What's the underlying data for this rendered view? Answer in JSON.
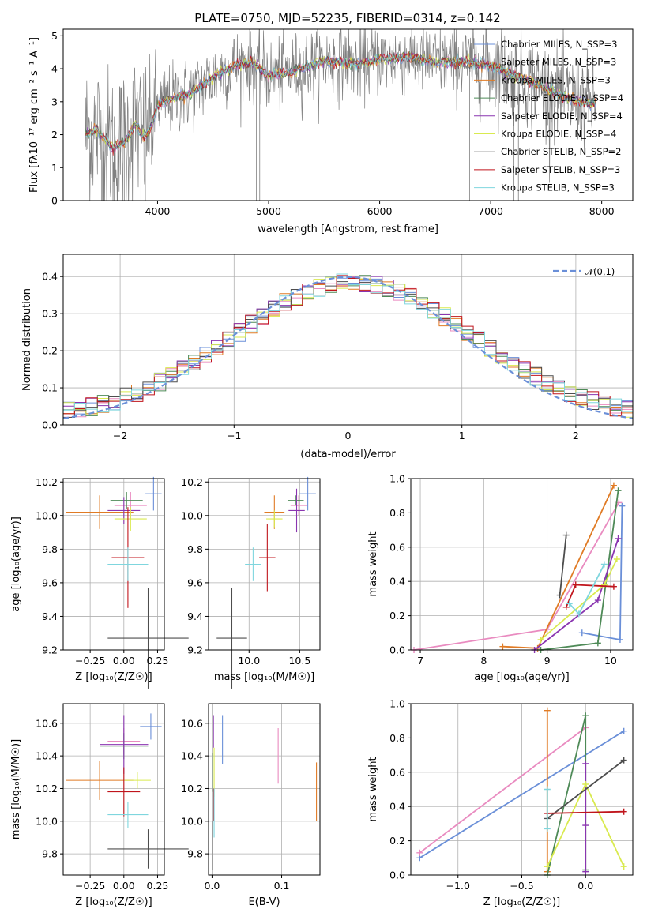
{
  "colors": {
    "chabrier_miles": "#6a8fd8",
    "salpeter_miles": "#e98bc0",
    "kroupa_miles": "#e07b25",
    "chabrier_elodie": "#4e8a57",
    "salpeter_elodie": "#8a35b0",
    "kroupa_elodie": "#d9ea4f",
    "chabrier_stelib": "#4d4d4d",
    "salpeter_stelib": "#c0151c",
    "kroupa_stelib": "#7fd6de",
    "data": "#808080",
    "normal": "#6a8fd8"
  },
  "chart_data": [
    {
      "id": "spectrum",
      "type": "line",
      "title": "PLATE=0750, MJD=52235, FIBERID=0314, z=0.142",
      "xlabel": "wavelength [Angstrom, rest frame]",
      "ylabel": "Flux [f_λ 10^-17 erg cm^-2 s^-1 A^-1]",
      "xlim": [
        3150,
        8280
      ],
      "ylim": [
        0,
        5.2
      ],
      "xticks": [
        4000,
        5000,
        6000,
        7000,
        8000
      ],
      "yticks": [
        0,
        1,
        2,
        3,
        4,
        5
      ],
      "legend_position": "top-right",
      "legend": [
        {
          "label": "Chabrier MILES, N_SSP=3",
          "color_key": "chabrier_miles"
        },
        {
          "label": "Salpeter MILES, N_SSP=3",
          "color_key": "salpeter_miles"
        },
        {
          "label": "Kroupa MILES, N_SSP=3",
          "color_key": "kroupa_miles"
        },
        {
          "label": "Chabrier ELODIE, N_SSP=4",
          "color_key": "chabrier_elodie"
        },
        {
          "label": "Salpeter ELODIE, N_SSP=4",
          "color_key": "salpeter_elodie"
        },
        {
          "label": "Kroupa ELODIE, N_SSP=4",
          "color_key": "kroupa_elodie"
        },
        {
          "label": "Chabrier STELIB, N_SSP=2",
          "color_key": "chabrier_stelib"
        },
        {
          "label": "Salpeter STELIB, N_SSP=3",
          "color_key": "salpeter_stelib"
        },
        {
          "label": "Kroupa STELIB, N_SSP=3",
          "color_key": "kroupa_stelib"
        }
      ],
      "model_continuum": [
        [
          3350,
          2.0
        ],
        [
          3450,
          2.15
        ],
        [
          3600,
          1.6
        ],
        [
          3700,
          1.75
        ],
        [
          3800,
          2.3
        ],
        [
          3880,
          1.9
        ],
        [
          3950,
          2.3
        ],
        [
          4000,
          2.9
        ],
        [
          4100,
          3.05
        ],
        [
          4300,
          3.25
        ],
        [
          4500,
          3.75
        ],
        [
          4700,
          4.1
        ],
        [
          4850,
          4.2
        ],
        [
          5000,
          3.8
        ],
        [
          5200,
          3.9
        ],
        [
          5500,
          4.25
        ],
        [
          5800,
          4.15
        ],
        [
          6000,
          4.3
        ],
        [
          6300,
          4.35
        ],
        [
          6500,
          4.2
        ],
        [
          6800,
          4.2
        ],
        [
          7000,
          4.1
        ],
        [
          7300,
          3.7
        ],
        [
          7500,
          3.4
        ],
        [
          7700,
          3.1
        ],
        [
          7900,
          2.95
        ]
      ]
    },
    {
      "id": "residuals",
      "type": "histogram",
      "xlabel": "(data-model)/error",
      "ylabel": "Normed distribution",
      "xlim": [
        -2.5,
        2.5
      ],
      "ylim": [
        0,
        0.46
      ],
      "xticks": [
        -2,
        -1,
        0,
        1,
        2
      ],
      "yticks": [
        0.0,
        0.1,
        0.2,
        0.3,
        0.4
      ],
      "legend_position": "top-right",
      "normal_label": "𝒩(0,1)"
    },
    {
      "id": "age-vs-Z",
      "type": "scatter",
      "xlabel": "Z [log10(Z/Z☉)]",
      "ylabel": "age [log10(age/yr)]",
      "xlim": [
        -0.45,
        0.3
      ],
      "ylim": [
        9.2,
        10.22
      ],
      "xticks": [
        -0.25,
        0.0,
        0.25
      ],
      "yticks": [
        9.2,
        9.4,
        9.6,
        9.8,
        10.0,
        10.2
      ],
      "points": [
        {
          "color_key": "chabrier_miles",
          "x": 0.22,
          "y": 10.13,
          "xerr": 0.06,
          "yerr": 0.1
        },
        {
          "color_key": "salpeter_miles",
          "x": 0.05,
          "y": 10.06,
          "xerr": 0.12,
          "yerr": 0.08
        },
        {
          "color_key": "kroupa_miles",
          "x": -0.18,
          "y": 10.02,
          "xerr": 0.25,
          "yerr": 0.1
        },
        {
          "color_key": "chabrier_elodie",
          "x": 0.02,
          "y": 10.09,
          "xerr": 0.12,
          "yerr": 0.05
        },
        {
          "color_key": "salpeter_elodie",
          "x": 0.0,
          "y": 10.03,
          "xerr": 0.12,
          "yerr": 0.08
        },
        {
          "color_key": "kroupa_elodie",
          "x": 0.05,
          "y": 9.98,
          "xerr": 0.12,
          "yerr": 0.07
        },
        {
          "color_key": "chabrier_stelib",
          "x": 0.18,
          "y": 9.27,
          "xerr": 0.3,
          "yerr": 0.3
        },
        {
          "color_key": "salpeter_stelib",
          "x": 0.03,
          "y": 9.75,
          "xerr": 0.12,
          "yerr": 0.3
        },
        {
          "color_key": "kroupa_stelib",
          "x": 0.03,
          "y": 9.71,
          "xerr": 0.15,
          "yerr": 0.1
        }
      ]
    },
    {
      "id": "age-vs-mass",
      "type": "scatter",
      "xlabel": "mass [log10(M/M☉)]",
      "xlim": [
        9.6,
        10.7
      ],
      "ylim": [
        9.2,
        10.22
      ],
      "xticks": [
        10.0,
        10.5
      ],
      "yticks": [
        9.2,
        9.4,
        9.6,
        9.8,
        10.0,
        10.2
      ],
      "points": [
        {
          "color_key": "chabrier_miles",
          "x": 10.58,
          "y": 10.13,
          "xerr": 0.08,
          "yerr": 0.1
        },
        {
          "color_key": "salpeter_miles",
          "x": 10.49,
          "y": 10.06,
          "xerr": 0.08,
          "yerr": 0.06
        },
        {
          "color_key": "kroupa_miles",
          "x": 10.25,
          "y": 10.02,
          "xerr": 0.1,
          "yerr": 0.1
        },
        {
          "color_key": "chabrier_elodie",
          "x": 10.46,
          "y": 10.09,
          "xerr": 0.08,
          "yerr": 0.03
        },
        {
          "color_key": "salpeter_elodie",
          "x": 10.47,
          "y": 10.03,
          "xerr": 0.08,
          "yerr": 0.13
        },
        {
          "color_key": "kroupa_elodie",
          "x": 10.25,
          "y": 9.98,
          "xerr": 0.08,
          "yerr": 0.05
        },
        {
          "color_key": "chabrier_stelib",
          "x": 9.83,
          "y": 9.27,
          "xerr": 0.15,
          "yerr": 0.3
        },
        {
          "color_key": "salpeter_stelib",
          "x": 10.18,
          "y": 9.75,
          "xerr": 0.08,
          "yerr": 0.2
        },
        {
          "color_key": "kroupa_stelib",
          "x": 10.04,
          "y": 9.71,
          "xerr": 0.08,
          "yerr": 0.1
        }
      ]
    },
    {
      "id": "weight-vs-age",
      "type": "line",
      "xlabel": "age [log10(age/yr)]",
      "ylabel": "mass weight",
      "xlim": [
        6.85,
        10.35
      ],
      "ylim": [
        0,
        1.0
      ],
      "xticks": [
        7,
        8,
        9,
        10
      ],
      "yticks": [
        0.0,
        0.2,
        0.4,
        0.6,
        0.8,
        1.0
      ],
      "series": [
        {
          "color_key": "chabrier_miles",
          "x": [
            9.55,
            10.15,
            10.18
          ],
          "y": [
            0.1,
            0.06,
            0.84
          ]
        },
        {
          "color_key": "salpeter_miles",
          "x": [
            6.9,
            9.0,
            10.13
          ],
          "y": [
            0.0,
            0.12,
            0.86
          ]
        },
        {
          "color_key": "kroupa_miles",
          "x": [
            8.3,
            8.85,
            10.05
          ],
          "y": [
            0.02,
            0.01,
            0.96
          ]
        },
        {
          "color_key": "chabrier_elodie",
          "x": [
            8.9,
            9.8,
            10.12
          ],
          "y": [
            0.0,
            0.04,
            0.93
          ]
        },
        {
          "color_key": "salpeter_elodie",
          "x": [
            8.8,
            9.8,
            10.12
          ],
          "y": [
            0.0,
            0.29,
            0.65
          ]
        },
        {
          "color_key": "kroupa_elodie",
          "x": [
            8.9,
            9.9,
            10.1
          ],
          "y": [
            0.06,
            0.38,
            0.53
          ]
        },
        {
          "color_key": "chabrier_stelib",
          "x": [
            9.2,
            9.3
          ],
          "y": [
            0.32,
            0.67
          ]
        },
        {
          "color_key": "salpeter_stelib",
          "x": [
            9.3,
            9.45,
            10.05
          ],
          "y": [
            0.25,
            0.38,
            0.37
          ]
        },
        {
          "color_key": "kroupa_stelib",
          "x": [
            9.35,
            9.5,
            9.9
          ],
          "y": [
            0.27,
            0.21,
            0.5
          ]
        }
      ]
    },
    {
      "id": "mass-vs-Z",
      "type": "scatter",
      "xlabel": "Z [log10(Z/Z☉)]",
      "ylabel": "mass [log10(M/M☉)]",
      "xlim": [
        -0.45,
        0.3
      ],
      "ylim": [
        9.67,
        10.72
      ],
      "xticks": [
        -0.25,
        0.0,
        0.25
      ],
      "yticks": [
        9.8,
        10.0,
        10.2,
        10.4,
        10.6
      ],
      "points": [
        {
          "color_key": "chabrier_miles",
          "x": 0.2,
          "y": 10.58,
          "xerr": 0.08,
          "yerr": 0.08
        },
        {
          "color_key": "salpeter_miles",
          "x": 0.0,
          "y": 10.49,
          "xerr": 0.12,
          "yerr": 0.08
        },
        {
          "color_key": "kroupa_miles",
          "x": -0.18,
          "y": 10.25,
          "xerr": 0.25,
          "yerr": 0.12
        },
        {
          "color_key": "chabrier_elodie",
          "x": 0.0,
          "y": 10.46,
          "xerr": 0.18,
          "yerr": 0.08
        },
        {
          "color_key": "salpeter_elodie",
          "x": 0.0,
          "y": 10.47,
          "xerr": 0.18,
          "yerr": 0.18
        },
        {
          "color_key": "kroupa_elodie",
          "x": 0.1,
          "y": 10.25,
          "xerr": 0.1,
          "yerr": 0.05
        },
        {
          "color_key": "chabrier_stelib",
          "x": 0.18,
          "y": 9.83,
          "xerr": 0.3,
          "yerr": 0.12
        },
        {
          "color_key": "salpeter_stelib",
          "x": 0.0,
          "y": 10.18,
          "xerr": 0.12,
          "yerr": 0.15
        },
        {
          "color_key": "kroupa_stelib",
          "x": 0.03,
          "y": 10.04,
          "xerr": 0.15,
          "yerr": 0.08
        }
      ]
    },
    {
      "id": "mass-vs-ebv",
      "type": "scatter",
      "xlabel": "E(B-V)",
      "xlim": [
        -0.005,
        0.155
      ],
      "ylim": [
        9.67,
        10.72
      ],
      "xticks": [
        0.0,
        0.1
      ],
      "yticks": [
        9.8,
        10.0,
        10.2,
        10.4,
        10.6
      ],
      "points": [
        {
          "color_key": "chabrier_miles",
          "x": 0.015,
          "y": 10.5,
          "xerr": 0,
          "yerr": 0.15
        },
        {
          "color_key": "salpeter_miles",
          "x": 0.095,
          "y": 10.4,
          "xerr": 0,
          "yerr": 0.17
        },
        {
          "color_key": "kroupa_miles",
          "x": 0.15,
          "y": 10.18,
          "xerr": 0,
          "yerr": 0.18
        },
        {
          "color_key": "chabrier_elodie",
          "x": 0.001,
          "y": 10.3,
          "xerr": 0,
          "yerr": 0.12
        },
        {
          "color_key": "salpeter_elodie",
          "x": 0.002,
          "y": 10.55,
          "xerr": 0,
          "yerr": 0.1
        },
        {
          "color_key": "kroupa_elodie",
          "x": 0.003,
          "y": 10.3,
          "xerr": 0,
          "yerr": 0.15
        },
        {
          "color_key": "chabrier_stelib",
          "x": 0.001,
          "y": 9.85,
          "xerr": 0,
          "yerr": 0.15
        },
        {
          "color_key": "salpeter_stelib",
          "x": 0.002,
          "y": 10.1,
          "xerr": 0,
          "yerr": 0.1
        },
        {
          "color_key": "kroupa_stelib",
          "x": 0.003,
          "y": 10.05,
          "xerr": 0,
          "yerr": 0.15
        }
      ]
    },
    {
      "id": "weight-vs-Z",
      "type": "line",
      "xlabel": "Z [log10(Z/Z☉)]",
      "ylabel": "mass weight",
      "xlim": [
        -1.37,
        0.37
      ],
      "ylim": [
        0,
        1.0
      ],
      "xticks": [
        -1.0,
        -0.5,
        0.0
      ],
      "yticks": [
        0.0,
        0.2,
        0.4,
        0.6,
        0.8,
        1.0
      ],
      "series": [
        {
          "color_key": "chabrier_miles",
          "x": [
            -1.3,
            0.3
          ],
          "y": [
            0.1,
            0.84
          ]
        },
        {
          "color_key": "salpeter_miles",
          "x": [
            -1.3,
            0.0
          ],
          "y": [
            0.13,
            0.86
          ]
        },
        {
          "color_key": "kroupa_miles",
          "x": [
            -0.3,
            -0.3
          ],
          "y": [
            0.02,
            0.96
          ]
        },
        {
          "color_key": "chabrier_elodie",
          "x": [
            -0.3,
            0.0,
            0.0
          ],
          "y": [
            0.0,
            0.93,
            0.03
          ]
        },
        {
          "color_key": "salpeter_elodie",
          "x": [
            0.0,
            0.0,
            0.0
          ],
          "y": [
            0.02,
            0.65,
            0.29
          ]
        },
        {
          "color_key": "kroupa_elodie",
          "x": [
            -0.3,
            0.0,
            0.3
          ],
          "y": [
            0.05,
            0.53,
            0.05
          ]
        },
        {
          "color_key": "chabrier_stelib",
          "x": [
            -0.3,
            0.3
          ],
          "y": [
            0.33,
            0.67
          ]
        },
        {
          "color_key": "salpeter_stelib",
          "x": [
            -0.3,
            0.3
          ],
          "y": [
            0.36,
            0.37
          ]
        },
        {
          "color_key": "kroupa_stelib",
          "x": [
            -0.3,
            -0.3
          ],
          "y": [
            0.27,
            0.5
          ]
        }
      ]
    }
  ]
}
